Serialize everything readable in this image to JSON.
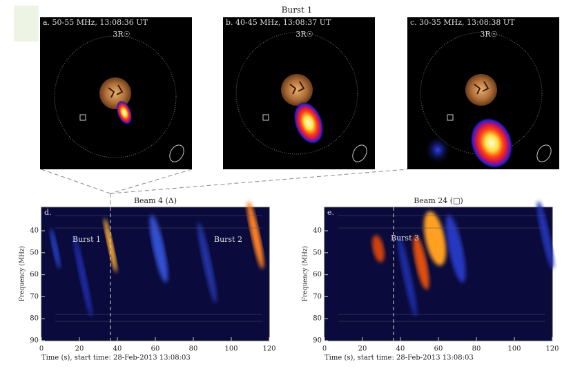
{
  "title": "Burst 1",
  "images": [
    {
      "label": "a. 50-55 MHz, 13:08:36 UT",
      "radius_label": "3R☉"
    },
    {
      "label": "b. 40-45 MHz, 13:08:37 UT",
      "radius_label": "3R☉"
    },
    {
      "label": "c. 30-35 MHz, 13:08:38 UT",
      "radius_label": "3R☉"
    }
  ],
  "spectra": [
    {
      "panel_label": "d.",
      "title": "Beam 4 (Δ)",
      "annotations": [
        "Burst 1",
        "Burst 2"
      ],
      "y_label": "Frequency (MHz)",
      "x_label": "Time (s), start time: 28-Feb-2013 13:08:03",
      "xticks": [
        0,
        20,
        40,
        60,
        80,
        100,
        120
      ],
      "yticks": [
        40,
        50,
        60,
        70,
        80,
        90
      ]
    },
    {
      "panel_label": "e.",
      "title": "Beam 24 (□)",
      "annotations": [
        "Burst 3"
      ],
      "y_label": "Frequency (MHz)",
      "x_label": "Time (s), start time: 28-Feb-2013 13:08:03",
      "xticks": [
        0,
        20,
        40,
        60,
        80,
        100,
        120
      ],
      "yticks": [
        40,
        50,
        60,
        70,
        80,
        90
      ]
    }
  ]
}
